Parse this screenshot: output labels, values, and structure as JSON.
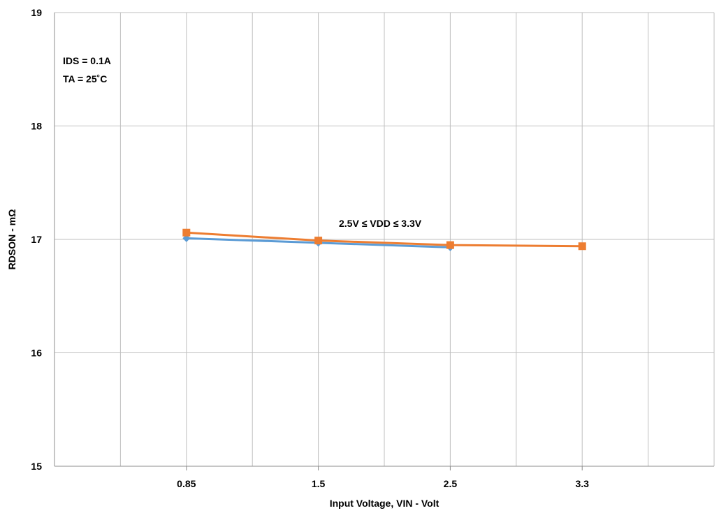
{
  "chart_data": {
    "type": "line",
    "xlabel": "Input Voltage, VIN - Volt",
    "ylabel": "RDSON - mΩ",
    "categories": [
      "0.85",
      "1.5",
      "2.5",
      "3.3"
    ],
    "ylim": [
      15,
      19
    ],
    "yticks": [
      15,
      16,
      17,
      18,
      19
    ],
    "grid": true,
    "legend": "none",
    "series": [
      {
        "color": "#5b9bd5",
        "marker": "diamond",
        "values": [
          17.01,
          16.97,
          16.93,
          null
        ]
      },
      {
        "color": "#ed7d31",
        "marker": "square",
        "values": [
          17.06,
          16.99,
          16.95,
          16.94
        ]
      }
    ],
    "annotations": [
      {
        "text": "IDS = 0.1A"
      },
      {
        "text": "TA = 25˚C"
      },
      {
        "text": "2.5V ≤ VDD ≤ 3.3V"
      }
    ]
  }
}
